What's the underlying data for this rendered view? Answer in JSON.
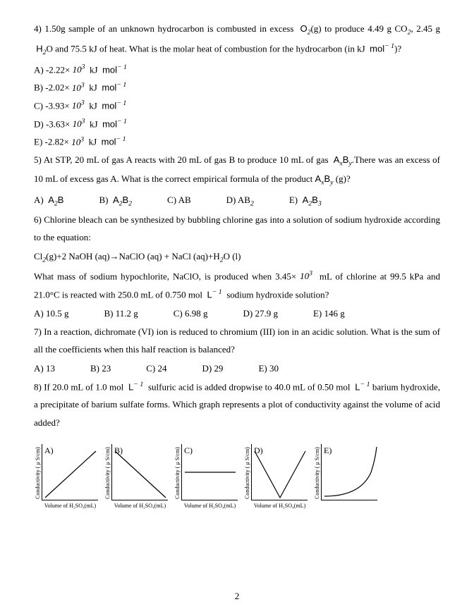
{
  "q4": {
    "text": "4) 1.50g sample of an unknown hydrocarbon is combusted in excess  O₂(g) to produce 4.49 g CO₂, 2.45 g  H₂O and 75.5 kJ of heat. What is the molar heat of combustion for the hydrocarbon (in kJ  mol⁻¹)?",
    "a": "A) -2.22× 10³  kJ  mol⁻¹",
    "b": "B) -2.02× 10³  kJ  mol⁻¹",
    "c": "C) -3.93× 10³  kJ  mol⁻¹",
    "d": "D) -3.63× 10³  kJ  mol⁻¹",
    "e": "E) -2.82× 10³  kJ  mol⁻¹"
  },
  "q5": {
    "text": "5) At STP, 20 mL of gas A reacts with 20 mL of gas B to produce 10 mL of gas  AₓBᵧ.There was an excess of 10 mL of excess gas A. What is the correct empirical formula of the product AₓBᵧ (g)?",
    "a": "A)  A₂B",
    "b": "B)  A₂B₂",
    "c": "C) AB",
    "d": "D) AB₂",
    "e": "E)  A₂B₃"
  },
  "q6": {
    "text1": "6) Chlorine bleach can be synthesized by bubbling chlorine gas into a solution of sodium hydroxide according to the equation:",
    "eq": "Cl₂(g)+2 NaOH (aq)→NaClO (aq) + NaCl (aq)+H₂O (l)",
    "text2": "What mass of sodium hypochlorite, NaClO, is produced when 3.45× 10³  mL of chlorine at 99.5 kPa and 21.0°C is reacted with 250.0 mL of 0.750 mol  L⁻¹  sodium hydroxide solution?",
    "a": "A) 10.5 g",
    "b": "B) 11.2 g",
    "c": "C) 6.98 g",
    "d": "D) 27.9 g",
    "e": "E) 146 g"
  },
  "q7": {
    "text": "7) In a reaction, dichromate (VI) ion is reduced to chromium (III) ion in an acidic solution. What is the sum of all the coefficients when this half reaction is balanced?",
    "a": "A) 13",
    "b": "B) 23",
    "c": "C) 24",
    "d": "D) 29",
    "e": "E) 30"
  },
  "q8": {
    "text": "8) If 20.0 mL of 1.0 mol  L⁻¹  sulfuric acid is added dropwise to 40.0 mL of 0.50 mol  L⁻¹ barium hydroxide, a precipitate of barium sulfate forms. Which graph represents a plot of conductivity against the volume of acid added?"
  },
  "graphs": {
    "ylabel": "Conductivity  ( μ S/cm)",
    "xlabel": "Volume of H₂SO₄(mL)",
    "labels": [
      "A)",
      "B)",
      "C)",
      "D)",
      "E)"
    ],
    "paths": [
      "M 4 76 L 76 10",
      "M 4 10 L 76 76",
      "M 4 40 L 76 40",
      "M 4 10 L 40 76 L 76 10",
      "M 4 74 Q 55 74 70 40 Q 76 22 78 4"
    ],
    "stroke": "#000000",
    "stroke_width": 1.2,
    "plot_size": 80
  },
  "page_number": "2"
}
